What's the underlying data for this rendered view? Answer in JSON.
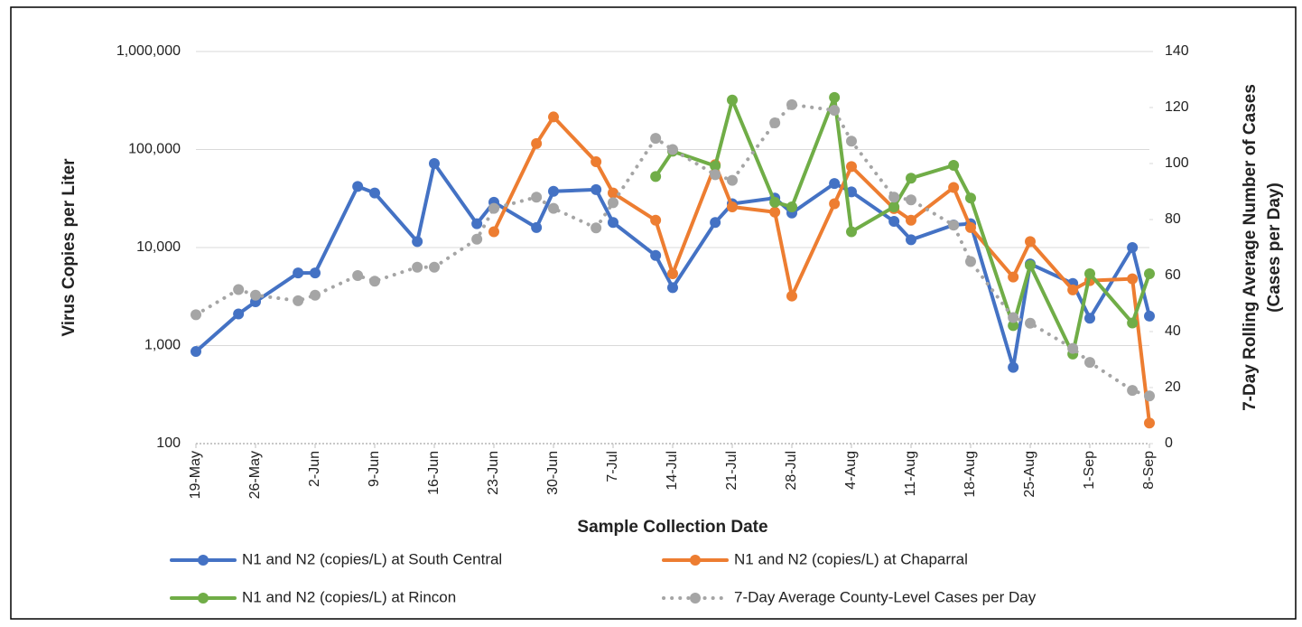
{
  "chart_data": {
    "type": "line",
    "xlabel": "Sample Collection Date",
    "ylabel": "Virus Copies per Liter",
    "y2label": [
      "7-Day Rolling Average Number of Cases",
      "(Cases per Day)"
    ],
    "ylog": true,
    "grid": true,
    "legend": "bottom",
    "xlim": [
      "19-May",
      "8-Sep"
    ],
    "xticks": [
      "19-May",
      "26-May",
      "2-Jun",
      "9-Jun",
      "16-Jun",
      "23-Jun",
      "30-Jun",
      "7-Jul",
      "14-Jul",
      "21-Jul",
      "28-Jul",
      "4-Aug",
      "11-Aug",
      "18-Aug",
      "25-Aug",
      "1-Sep",
      "8-Sep"
    ],
    "ylim": [
      100,
      1000000
    ],
    "yticks": [
      100,
      {
        "value": 1000,
        "label": "1,000"
      },
      {
        "value": 10000,
        "label": "10,000"
      },
      {
        "value": 100000,
        "label": "100,000"
      },
      {
        "value": 1000000,
        "label": "1,000,000"
      }
    ],
    "y2lim": [
      0,
      140
    ],
    "y2ticks": [
      0,
      20,
      40,
      60,
      80,
      100,
      120,
      140
    ],
    "x": [
      "19-May",
      "24-May",
      "26-May",
      "31-May",
      "2-Jun",
      "7-Jun",
      "9-Jun",
      "14-Jun",
      "16-Jun",
      "21-Jun",
      "23-Jun",
      "28-Jun",
      "30-Jun",
      "5-Jul",
      "7-Jul",
      "12-Jul",
      "14-Jul",
      "19-Jul",
      "21-Jul",
      "26-Jul",
      "28-Jul",
      "2-Aug",
      "4-Aug",
      "9-Aug",
      "11-Aug",
      "16-Aug",
      "18-Aug",
      "23-Aug",
      "25-Aug",
      "30-Aug",
      "1-Sep",
      "6-Sep",
      "8-Sep"
    ],
    "series": [
      {
        "name": "N1 and N2 (copies/L) at South Central",
        "color": "#4472c4",
        "values": [
          870,
          2100,
          2800,
          5500,
          5500,
          42000,
          36000,
          11500,
          72000,
          17500,
          29000,
          16000,
          37500,
          39000,
          18000,
          8300,
          3900,
          18000,
          28000,
          32000,
          22500,
          45000,
          37000,
          18500,
          12000,
          17000,
          17500,
          600,
          6800,
          4300,
          1900,
          10000,
          2000
        ]
      },
      {
        "name": "N1 and N2 (copies/L) at Chaparral",
        "color": "#ed7d31",
        "values": [
          null,
          null,
          null,
          null,
          null,
          null,
          null,
          null,
          null,
          null,
          14500,
          115000,
          215000,
          75000,
          36000,
          19000,
          5400,
          70000,
          26000,
          23000,
          3200,
          28000,
          67000,
          25000,
          19000,
          41000,
          16000,
          5000,
          11500,
          3700,
          4600,
          4800,
          162
        ]
      },
      {
        "name": "N1 and N2 (copies/L) at Rincon",
        "color": "#70ad47",
        "values": [
          null,
          null,
          null,
          null,
          null,
          null,
          null,
          null,
          null,
          null,
          null,
          null,
          null,
          null,
          null,
          53000,
          96000,
          68000,
          320000,
          29000,
          26000,
          340000,
          14500,
          26000,
          51000,
          69000,
          32000,
          1600,
          6600,
          820,
          5400,
          1700,
          5400
        ]
      },
      {
        "name": "7-Day Average County-Level Cases per Day",
        "color": "#a5a5a5",
        "axis": "y2",
        "dash": "dotted",
        "values": [
          46,
          55,
          53,
          51,
          53,
          60,
          58,
          63,
          63,
          73,
          84,
          88,
          84,
          77,
          86,
          109,
          105,
          96,
          94,
          114.5,
          121,
          119,
          108,
          88,
          87,
          78,
          65,
          45,
          43,
          34,
          29,
          19,
          17
        ]
      }
    ]
  }
}
